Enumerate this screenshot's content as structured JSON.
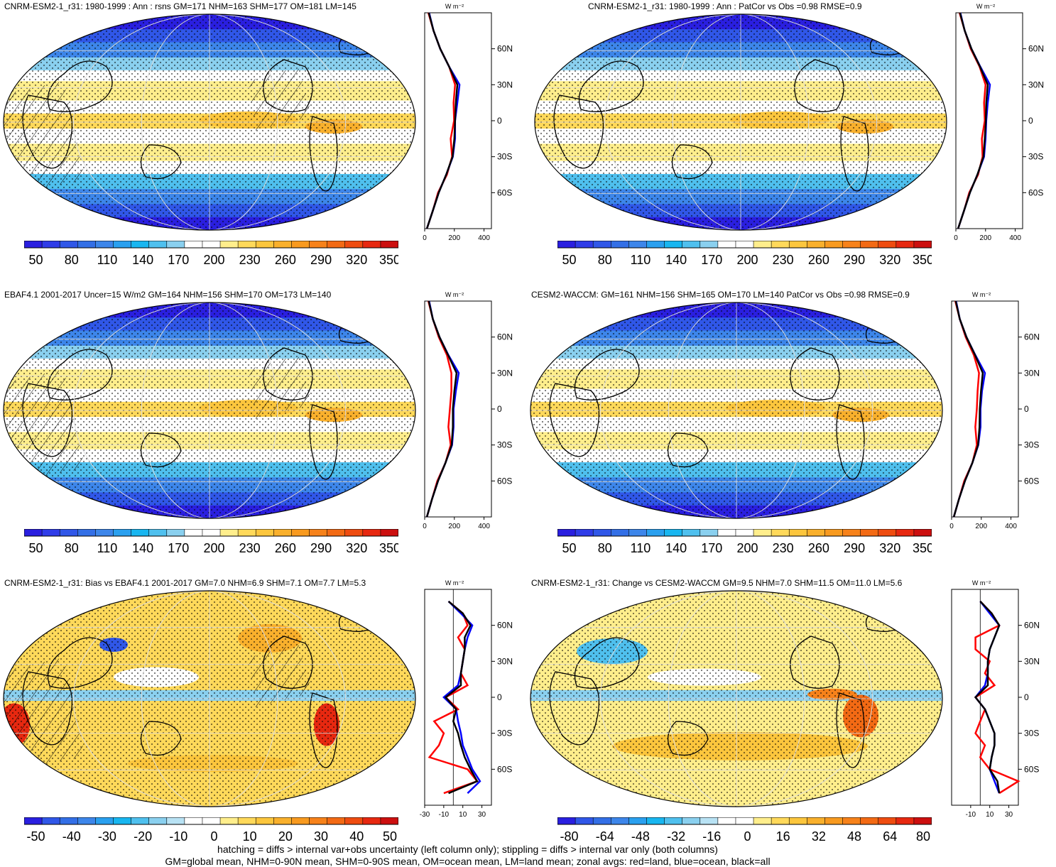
{
  "panels": [
    {
      "title": "CNRM-ESM2-1_r31: 1980-1999 : Ann : rsns GM=171 NHM=163 SHM=177 OM=181 LM=145",
      "style": "clim",
      "hatch": true,
      "colorbar": {
        "ticks": [
          "50",
          "80",
          "110",
          "140",
          "170",
          "200",
          "230",
          "260",
          "290",
          "320",
          "350"
        ]
      },
      "zonal": {
        "unit": "W m⁻²",
        "lat_ticks": [
          "60N",
          "30N",
          "0",
          "30S",
          "60S"
        ],
        "x_ticks": [
          "0",
          "200",
          "400"
        ]
      }
    },
    {
      "title": "CNRM-ESM2-1_r31: 1980-1999 : Ann : PatCor vs Obs =0.98 RMSE=0.9",
      "style": "clim",
      "hatch": false,
      "colorbar": {
        "ticks": [
          "50",
          "80",
          "110",
          "140",
          "170",
          "200",
          "230",
          "260",
          "290",
          "320",
          "350"
        ]
      },
      "zonal": {
        "unit": "W m⁻²",
        "lat_ticks": [
          "60N",
          "30N",
          "0",
          "30S",
          "60S"
        ],
        "x_ticks": [
          "0",
          "200",
          "400"
        ]
      }
    },
    {
      "title": "EBAF4.1 2001-2017 Uncer=15 W/m2 GM=164 NHM=156 SHM=170 OM=173 LM=140",
      "style": "clim",
      "hatch": true,
      "colorbar": {
        "ticks": [
          "50",
          "80",
          "110",
          "140",
          "170",
          "200",
          "230",
          "260",
          "290",
          "320",
          "350"
        ]
      },
      "zonal": {
        "unit": "W m⁻²",
        "lat_ticks": [
          "60N",
          "30N",
          "0",
          "30S",
          "60S"
        ],
        "x_ticks": [
          "0",
          "200",
          "400"
        ]
      }
    },
    {
      "title": "CESM2-WACCM: GM=161 NHM=156 SHM=165 OM=170 LM=140 PatCor vs Obs =0.98 RMSE=0.9",
      "style": "clim",
      "hatch": false,
      "colorbar": {
        "ticks": [
          "50",
          "80",
          "110",
          "140",
          "170",
          "200",
          "230",
          "260",
          "290",
          "320",
          "350"
        ]
      },
      "zonal": {
        "unit": "W m⁻²",
        "lat_ticks": [
          "60N",
          "30N",
          "0",
          "30S",
          "60S"
        ],
        "x_ticks": [
          "0",
          "200",
          "400"
        ]
      }
    },
    {
      "title": "CNRM-ESM2-1_r31: Bias vs EBAF4.1 2001-2017 GM=7.0 NHM=6.9 SHM=7.1 OM=7.7 LM=5.3",
      "style": "bias",
      "hatch": true,
      "colorbar": {
        "ticks": [
          "-50",
          "-40",
          "-30",
          "-20",
          "-10",
          "0",
          "10",
          "20",
          "30",
          "40",
          "50"
        ]
      },
      "zonal": {
        "unit": "W m⁻²",
        "lat_ticks": [
          "60N",
          "30N",
          "0",
          "30S",
          "60S"
        ],
        "x_ticks": [
          "-30",
          "-10",
          "10",
          "30"
        ]
      }
    },
    {
      "title": "CNRM-ESM2-1_r31: Change vs CESM2-WACCM GM=9.5 NHM=7.0 SHM=11.5 OM=11.0 LM=5.6",
      "style": "change",
      "hatch": false,
      "colorbar": {
        "ticks": [
          "-80",
          "-64",
          "-48",
          "-32",
          "-16",
          "0",
          "16",
          "32",
          "48",
          "64",
          "80"
        ]
      },
      "zonal": {
        "unit": "W m⁻²",
        "lat_ticks": [
          "60N",
          "30N",
          "0",
          "30S",
          "60S"
        ],
        "x_ticks": [
          "-10",
          "10",
          "30"
        ]
      }
    }
  ],
  "footnotes": [
    "hatching = diffs > internal var+obs uncertainty (left column only); stippling = diffs > internal var only (both columns)",
    "GM=global mean, NHM=0-90N mean, SHM=0-90S mean, OM=ocean mean, LM=land mean; zonal avgs: red=land, blue=ocean, black=all"
  ],
  "colors": {
    "clim_palette": [
      "#2a1fe0",
      "#2f3ce8",
      "#3057e8",
      "#336fe6",
      "#3d86ea",
      "#2aa0ef",
      "#18b6f0",
      "#4fc0ee",
      "#8ad0ef",
      "#ffffff",
      "#ffffff",
      "#ffee8c",
      "#ffd95a",
      "#fcc63d",
      "#f9b02c",
      "#f89a1f",
      "#f7821a",
      "#f36a14",
      "#ef4c10",
      "#e72810",
      "#cc0f0f"
    ],
    "diff_palette": [
      "#2a1fe0",
      "#3057e8",
      "#336fe6",
      "#3d86ea",
      "#2aa0ef",
      "#18b6f0",
      "#4fc0ee",
      "#8ad0ef",
      "#b8e2f4",
      "#ffffff",
      "#ffffff",
      "#ffee8c",
      "#ffd95a",
      "#fcc63d",
      "#f9b02c",
      "#f89a1f",
      "#f7821a",
      "#f36a14",
      "#ef4c10",
      "#e72810",
      "#cc0f0f"
    ],
    "land_line": "#ff0000",
    "ocean_line": "#0000ff",
    "all_line": "#000000"
  },
  "chart_data": [
    {
      "type": "line",
      "title": "CNRM-ESM2-1_r31: 1980-1999 : Ann : rsns GM=171 NHM=163 SHM=177 OM=181 LM=145",
      "ylabel": "W m-2",
      "y": [
        90,
        75,
        60,
        45,
        30,
        15,
        0,
        -15,
        -30,
        -45,
        -60,
        -75,
        -90
      ],
      "series": [
        {
          "name": "land",
          "values": [
            25,
            60,
            105,
            165,
            205,
            195,
            198,
            175,
            185,
            150,
            90,
            55,
            15
          ]
        },
        {
          "name": "ocean",
          "values": [
            30,
            60,
            105,
            165,
            235,
            220,
            205,
            205,
            190,
            145,
            95,
            55,
            15
          ]
        },
        {
          "name": "all",
          "values": [
            28,
            60,
            105,
            165,
            220,
            210,
            205,
            200,
            188,
            145,
            95,
            55,
            15
          ]
        }
      ]
    },
    {
      "type": "line",
      "title": "CNRM-ESM2-1_r31: 1980-1999 : Ann : PatCor vs Obs =0.98 RMSE=0.9",
      "ylabel": "W m-2",
      "y": [
        90,
        75,
        60,
        45,
        30,
        15,
        0,
        -15,
        -30,
        -45,
        -60,
        -75,
        -90
      ],
      "series": [
        {
          "name": "land",
          "values": [
            25,
            60,
            100,
            160,
            200,
            190,
            195,
            175,
            180,
            150,
            90,
            55,
            15
          ]
        },
        {
          "name": "ocean",
          "values": [
            30,
            60,
            105,
            165,
            230,
            215,
            205,
            200,
            190,
            145,
            95,
            55,
            15
          ]
        },
        {
          "name": "all",
          "values": [
            28,
            60,
            105,
            163,
            215,
            205,
            202,
            195,
            186,
            145,
            95,
            55,
            15
          ]
        }
      ]
    },
    {
      "type": "line",
      "title": "EBAF4.1 2001-2017 Uncer=15 W/m2 GM=164 NHM=156 SHM=170 OM=173 LM=140",
      "ylabel": "W m-2",
      "y": [
        90,
        75,
        60,
        45,
        30,
        15,
        0,
        -15,
        -30,
        -45,
        -60,
        -75,
        -90
      ],
      "series": [
        {
          "name": "land",
          "values": [
            25,
            55,
            95,
            150,
            180,
            180,
            170,
            160,
            175,
            140,
            85,
            50,
            15
          ]
        },
        {
          "name": "ocean",
          "values": [
            30,
            55,
            100,
            160,
            230,
            210,
            195,
            195,
            185,
            140,
            90,
            50,
            15
          ]
        },
        {
          "name": "all",
          "values": [
            28,
            55,
            100,
            158,
            215,
            200,
            190,
            190,
            182,
            140,
            90,
            50,
            15
          ]
        }
      ]
    },
    {
      "type": "line",
      "title": "CESM2-WACCM: GM=161 NHM=156 SHM=165 OM=170 LM=140 PatCor vs Obs =0.98 RMSE=0.9",
      "ylabel": "W m-2",
      "y": [
        90,
        75,
        60,
        45,
        30,
        15,
        0,
        -15,
        -30,
        -45,
        -60,
        -75,
        -90
      ],
      "series": [
        {
          "name": "land",
          "values": [
            25,
            55,
            95,
            150,
            185,
            175,
            170,
            160,
            170,
            140,
            85,
            50,
            15
          ]
        },
        {
          "name": "ocean",
          "values": [
            30,
            55,
            100,
            160,
            225,
            205,
            195,
            195,
            180,
            140,
            90,
            50,
            15
          ]
        },
        {
          "name": "all",
          "values": [
            28,
            55,
            100,
            158,
            210,
            198,
            190,
            188,
            178,
            140,
            90,
            50,
            15
          ]
        }
      ]
    },
    {
      "type": "line",
      "title": "CNRM-ESM2-1_r31: Bias vs EBAF4.1 2001-2017 GM=7.0 NHM=6.9 SHM=7.1 OM=7.7 LM=5.3",
      "ylabel": "W m-2",
      "y": [
        80,
        70,
        60,
        50,
        40,
        30,
        20,
        10,
        0,
        -10,
        -20,
        -30,
        -40,
        -50,
        -60,
        -70,
        -80
      ],
      "series": [
        {
          "name": "land",
          "values": [
            -5,
            10,
            15,
            5,
            12,
            10,
            8,
            15,
            -8,
            5,
            -20,
            -10,
            -15,
            -25,
            15,
            25,
            -10
          ]
        },
        {
          "name": "ocean",
          "values": [
            -5,
            8,
            20,
            15,
            12,
            10,
            8,
            5,
            -10,
            3,
            5,
            8,
            10,
            15,
            20,
            28,
            15
          ]
        },
        {
          "name": "all",
          "values": [
            -5,
            10,
            18,
            12,
            12,
            10,
            8,
            8,
            -8,
            3,
            0,
            5,
            8,
            12,
            18,
            25,
            -5
          ]
        }
      ]
    },
    {
      "type": "line",
      "title": "CNRM-ESM2-1_r31: Change vs CESM2-WACCM GM=9.5 NHM=7.0 SHM=11.5 OM=11.0 LM=5.6",
      "ylabel": "W m-2",
      "y": [
        80,
        70,
        60,
        50,
        40,
        30,
        20,
        10,
        0,
        -10,
        -20,
        -30,
        -40,
        -50,
        -60,
        -70,
        -80
      ],
      "series": [
        {
          "name": "land",
          "values": [
            0,
            12,
            20,
            -5,
            -5,
            10,
            5,
            15,
            -5,
            5,
            0,
            -5,
            5,
            0,
            10,
            40,
            20
          ]
        },
        {
          "name": "ocean",
          "values": [
            0,
            10,
            20,
            15,
            10,
            8,
            8,
            5,
            -5,
            5,
            10,
            15,
            15,
            12,
            10,
            15,
            20
          ]
        },
        {
          "name": "all",
          "values": [
            0,
            12,
            20,
            15,
            10,
            8,
            8,
            8,
            -5,
            5,
            10,
            15,
            15,
            12,
            10,
            18,
            20
          ]
        }
      ]
    }
  ]
}
